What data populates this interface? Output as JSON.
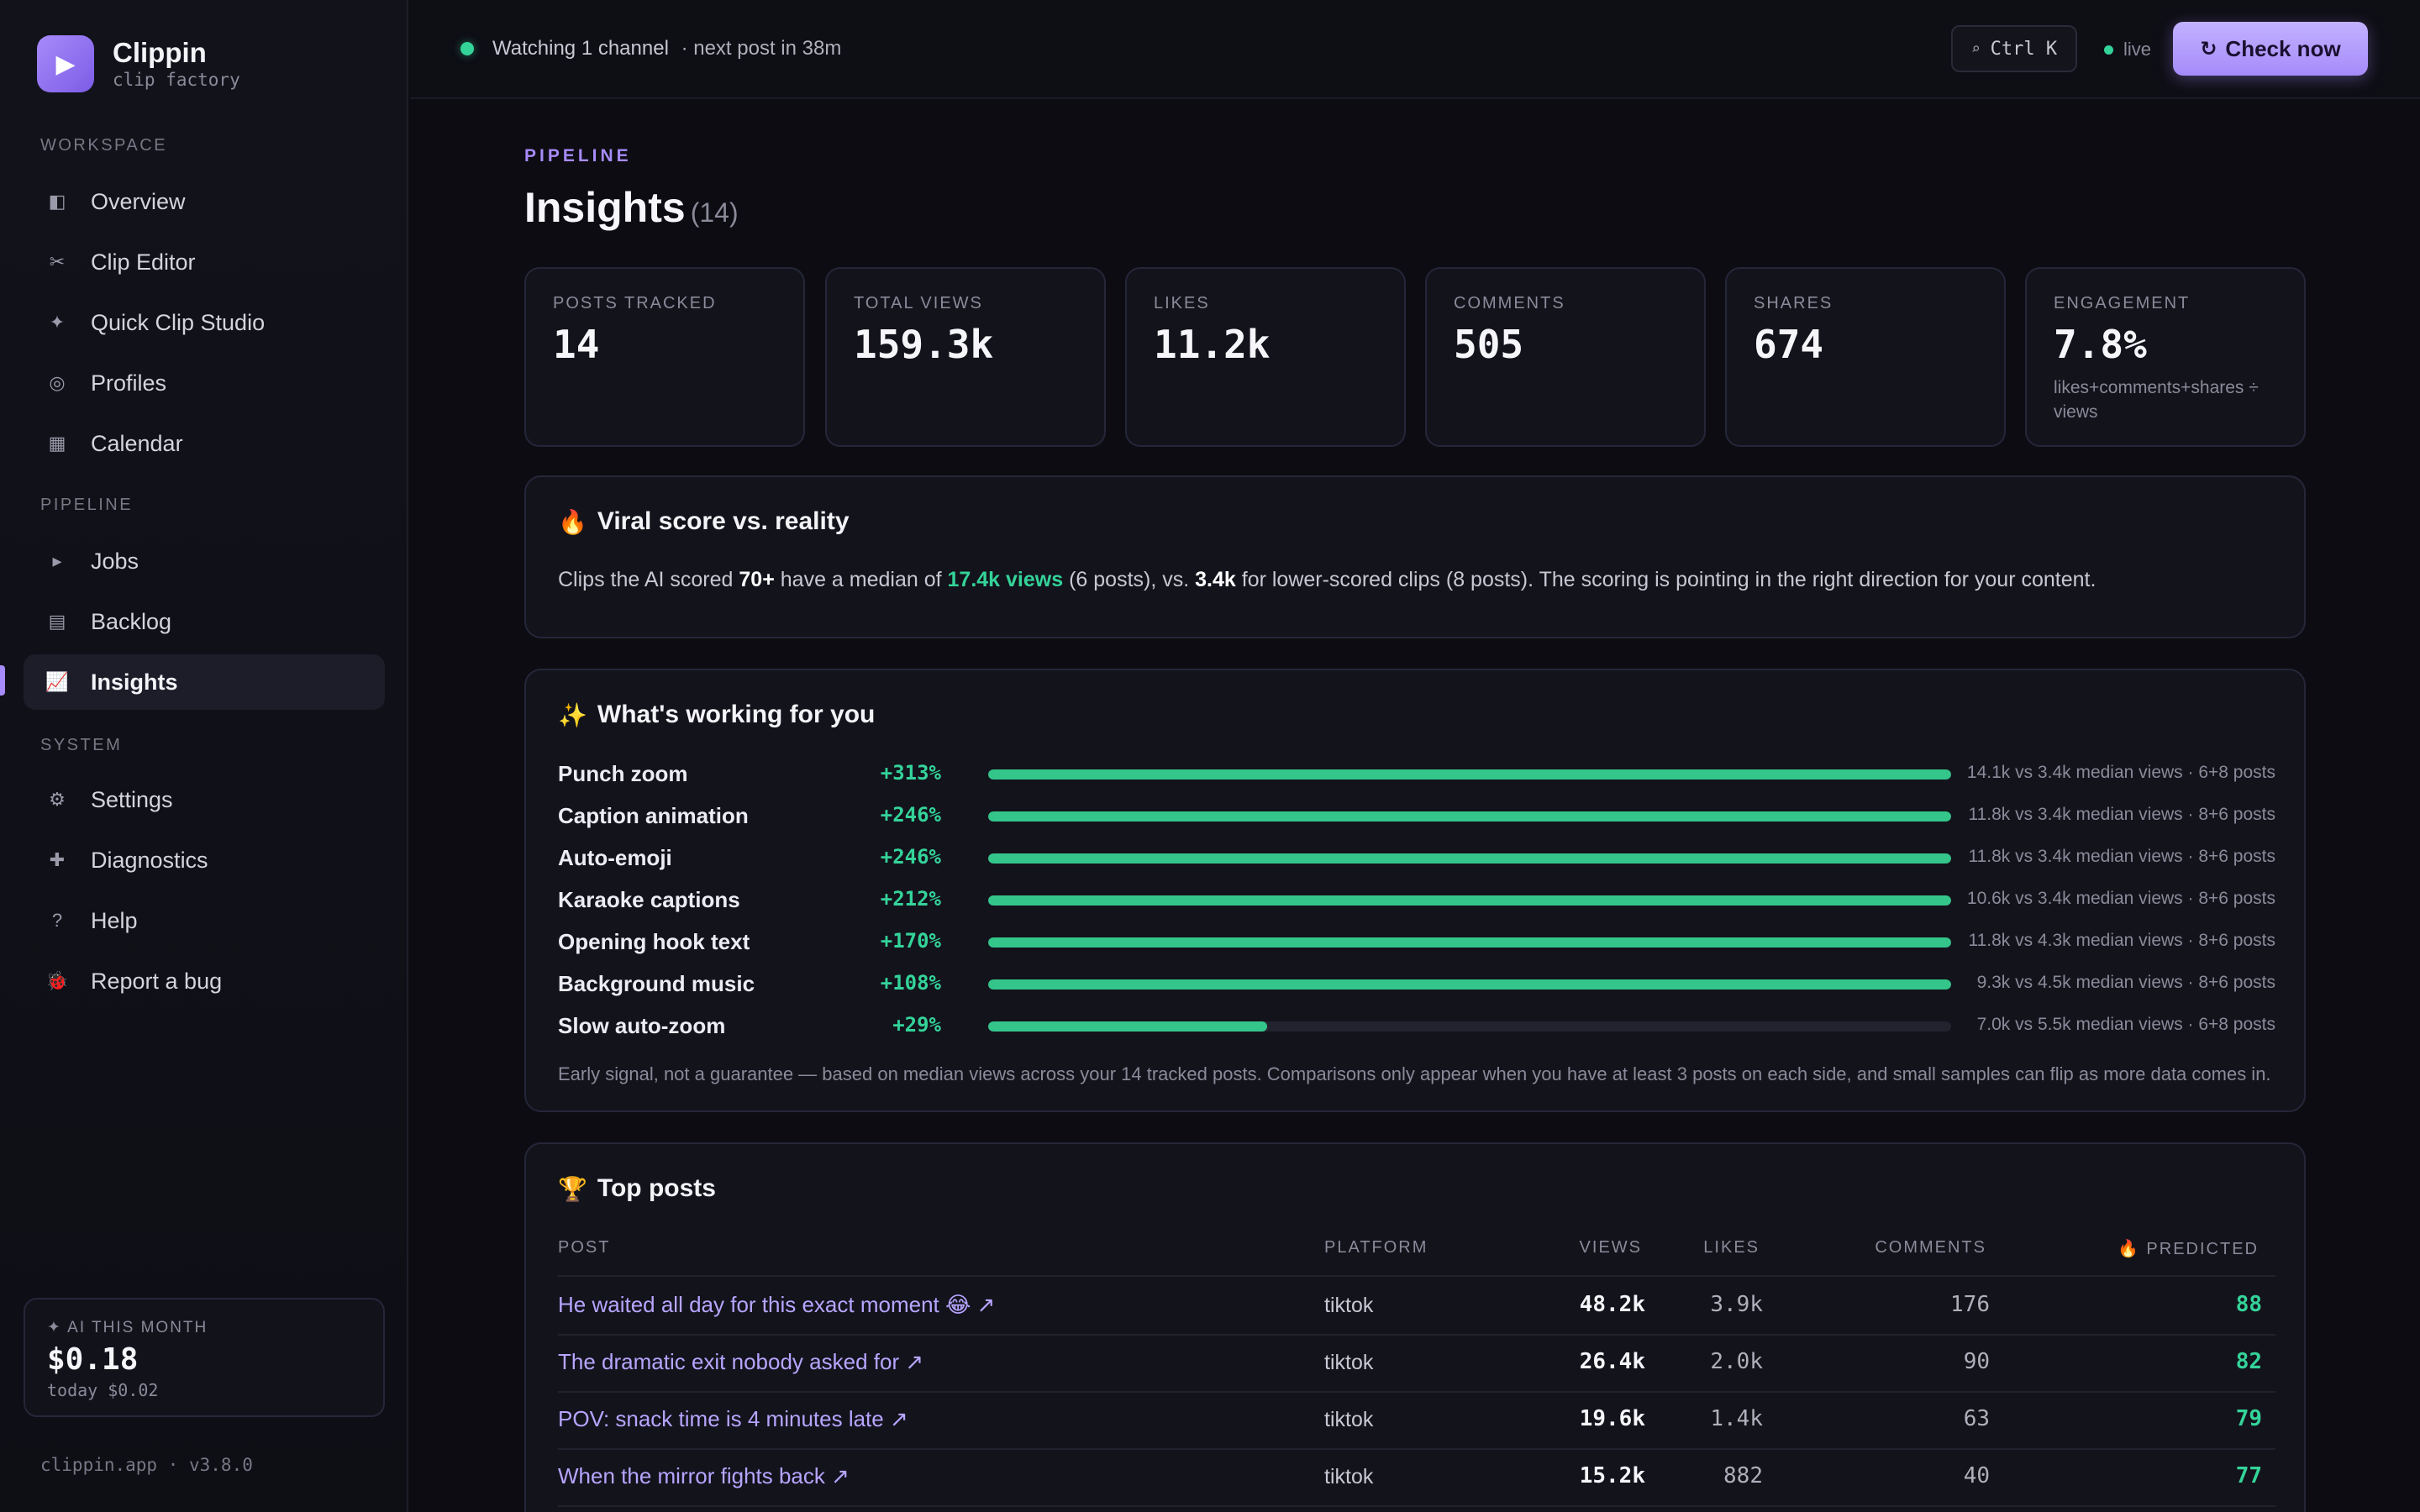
{
  "brand": {
    "name": "Clippin",
    "tagline": "clip factory"
  },
  "sidebar": {
    "sections": {
      "workspace": "WORKSPACE",
      "pipeline": "PIPELINE",
      "system": "SYSTEM"
    },
    "workspace_items": [
      {
        "label": "Overview",
        "icon": "◧"
      },
      {
        "label": "Clip Editor",
        "icon": "✂"
      },
      {
        "label": "Quick Clip Studio",
        "icon": "✦"
      },
      {
        "label": "Profiles",
        "icon": "◎"
      },
      {
        "label": "Calendar",
        "icon": "▦"
      }
    ],
    "pipeline_items": [
      {
        "label": "Jobs",
        "icon": "▸"
      },
      {
        "label": "Backlog",
        "icon": "▤"
      },
      {
        "label": "Insights",
        "icon": "📈",
        "active": true
      }
    ],
    "system_items": [
      {
        "label": "Settings",
        "icon": "⚙"
      },
      {
        "label": "Diagnostics",
        "icon": "✚"
      },
      {
        "label": "Help",
        "icon": "?"
      },
      {
        "label": "Report a bug",
        "icon": "🐞"
      }
    ],
    "ai_card": {
      "label": "✦ AI THIS MONTH",
      "value": "$0.18",
      "today": "today $0.02"
    },
    "version": "clippin.app · v3.8.0"
  },
  "topbar": {
    "status": "Watching 1 channel",
    "next": "· next post in 38m",
    "search_shortcut": "Ctrl K",
    "search_icon": "⌕",
    "live_label": "live",
    "check_icon": "↻",
    "check_label": "Check now"
  },
  "page": {
    "eyebrow": "PIPELINE",
    "title": "Insights",
    "count": "(14)"
  },
  "stats": [
    {
      "label": "POSTS TRACKED",
      "value": "14"
    },
    {
      "label": "TOTAL VIEWS",
      "value": "159.3k"
    },
    {
      "label": "LIKES",
      "value": "11.2k"
    },
    {
      "label": "COMMENTS",
      "value": "505"
    },
    {
      "label": "SHARES",
      "value": "674"
    },
    {
      "label": "ENGAGEMENT",
      "value": "7.8%",
      "note": "likes+comments+shares ÷ views"
    }
  ],
  "viral": {
    "emoji": "🔥",
    "title": "Viral score vs. reality",
    "t1": "Clips the AI scored ",
    "threshold": "70+",
    "t2": " have a median of ",
    "high_median": "17.4k views",
    "t3": " (6 posts), vs. ",
    "low_median": "3.4k",
    "t4": " for lower-scored clips (8 posts). The scoring is pointing in the right direction for your content."
  },
  "working": {
    "emoji": "✨",
    "title": "What's working for you",
    "features": [
      {
        "name": "Punch zoom",
        "pct": "+313%",
        "fill": 1.0,
        "note": "14.1k vs 3.4k median views · 6+8 posts"
      },
      {
        "name": "Caption animation",
        "pct": "+246%",
        "fill": 1.0,
        "note": "11.8k vs 3.4k median views · 8+6 posts"
      },
      {
        "name": "Auto-emoji",
        "pct": "+246%",
        "fill": 1.0,
        "note": "11.8k vs 3.4k median views · 8+6 posts"
      },
      {
        "name": "Karaoke captions",
        "pct": "+212%",
        "fill": 1.0,
        "note": "10.6k vs 3.4k median views · 8+6 posts"
      },
      {
        "name": "Opening hook text",
        "pct": "+170%",
        "fill": 1.0,
        "note": "11.8k vs 4.3k median views · 8+6 posts"
      },
      {
        "name": "Background music",
        "pct": "+108%",
        "fill": 1.0,
        "note": "9.3k vs 4.5k median views · 8+6 posts"
      },
      {
        "name": "Slow auto-zoom",
        "pct": "+29%",
        "fill": 0.29,
        "note": "7.0k vs 5.5k median views · 6+8 posts"
      }
    ],
    "footnote": "Early signal, not a guarantee — based on median views across your 14 tracked posts. Comparisons only appear when you have at least 3 posts on each side, and small samples can flip as more data comes in."
  },
  "top_posts": {
    "emoji": "🏆",
    "title": "Top posts",
    "headers": {
      "post": "POST",
      "platform": "PLATFORM",
      "views": "VIEWS",
      "likes": "LIKES",
      "comments": "COMMENTS",
      "predicted": "🔥 PREDICTED"
    },
    "rows": [
      {
        "post": "He waited all day for this exact moment 😂 ↗",
        "platform": "tiktok",
        "views": "48.2k",
        "likes": "3.9k",
        "comments": "176",
        "predicted": "88"
      },
      {
        "post": "The dramatic exit nobody asked for ↗",
        "platform": "tiktok",
        "views": "26.4k",
        "likes": "2.0k",
        "comments": "90",
        "predicted": "82"
      },
      {
        "post": "POV: snack time is 4 minutes late ↗",
        "platform": "tiktok",
        "views": "19.6k",
        "likes": "1.4k",
        "comments": "63",
        "predicted": "79"
      },
      {
        "post": "When the mirror fights back ↗",
        "platform": "tiktok",
        "views": "15.2k",
        "likes": "882",
        "comments": "40",
        "predicted": "77"
      }
    ]
  }
}
